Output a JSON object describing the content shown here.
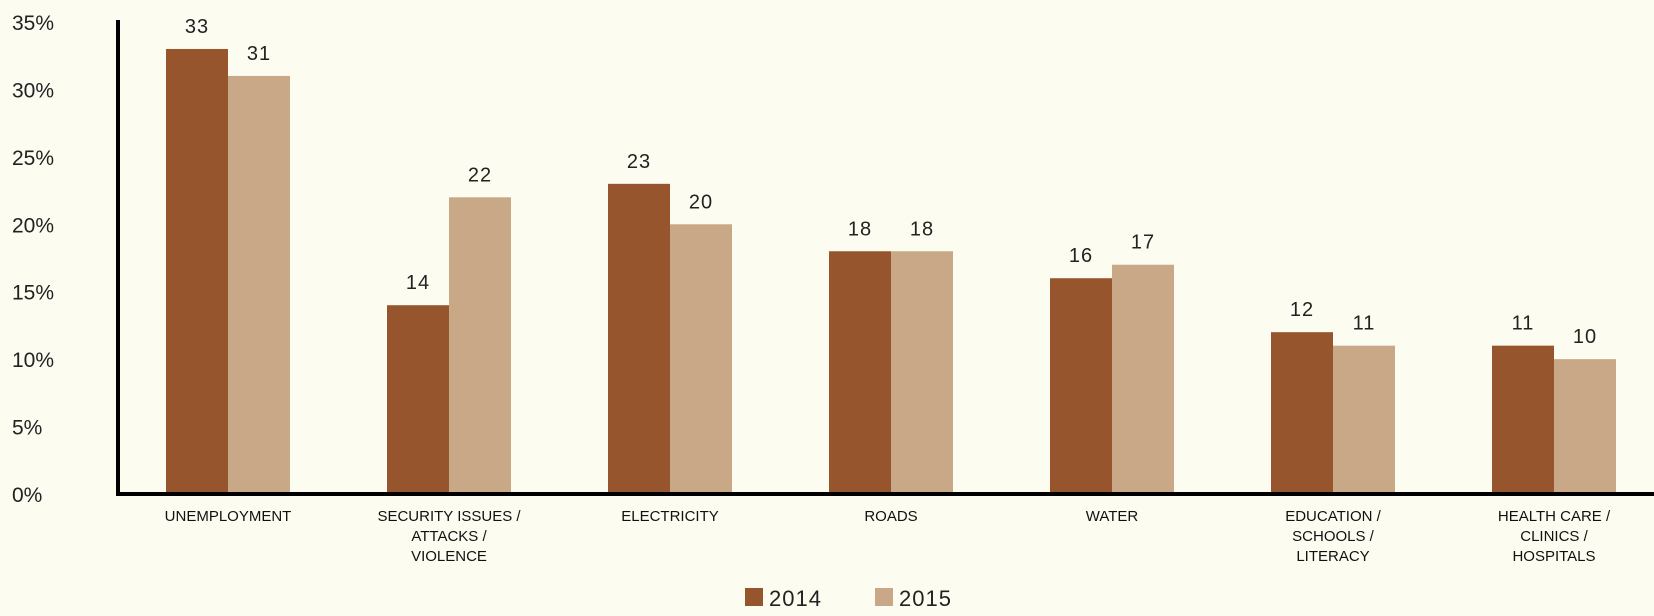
{
  "chart_data": {
    "type": "bar",
    "categories": [
      [
        "UNEMPLOYMENT"
      ],
      [
        "SECURITY ISSUES /",
        "ATTACKS /",
        "VIOLENCE"
      ],
      [
        "ELECTRICITY"
      ],
      [
        "ROADS"
      ],
      [
        "WATER"
      ],
      [
        "EDUCATION /",
        "SCHOOLS /",
        "LITERACY"
      ],
      [
        "HEALTH CARE /",
        "CLINICS /",
        "HOSPITALS"
      ]
    ],
    "series": [
      {
        "name": "2014",
        "color": "#96552c",
        "values": [
          33,
          14,
          23,
          18,
          16,
          12,
          11
        ]
      },
      {
        "name": "2015",
        "color": "#c9a887",
        "values": [
          31,
          22,
          20,
          18,
          17,
          11,
          10
        ]
      }
    ],
    "y_ticks": [
      "0%",
      "5%",
      "10%",
      "15%",
      "20%",
      "25%",
      "30%",
      "35%"
    ],
    "ylim": [
      0,
      35
    ],
    "grid": false,
    "legend_position": "bottom-center"
  }
}
